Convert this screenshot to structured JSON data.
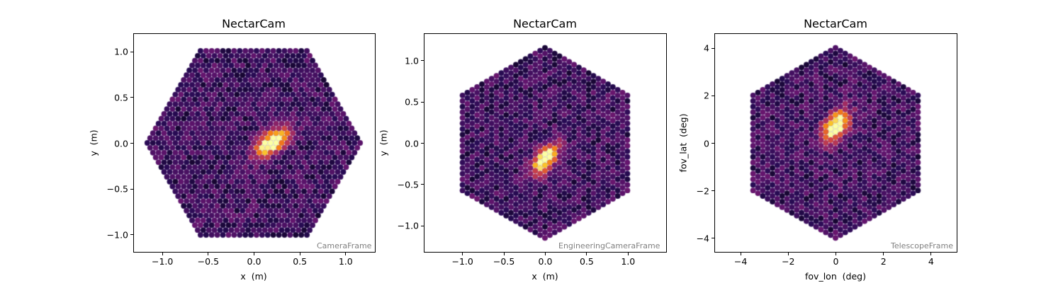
{
  "chart_data": [
    {
      "type": "heatmap",
      "title": "NectarCam",
      "frame_label": "CameraFrame",
      "xlabel": "x  (m)",
      "ylabel": "y  (m)",
      "xlim": [
        -1.32,
        1.32
      ],
      "ylim": [
        -1.19,
        1.2
      ],
      "xticks": [
        -1.0,
        -0.5,
        0.0,
        0.5,
        1.0
      ],
      "xtick_labels": [
        "−1.0",
        "−0.5",
        "0.0",
        "0.5",
        "1.0"
      ],
      "yticks": [
        -1.0,
        -0.5,
        0.0,
        0.5,
        1.0
      ],
      "ytick_labels": [
        "−1.0",
        "−0.5",
        "0.0",
        "0.5",
        "1.0"
      ],
      "colormap": "inferno",
      "camera_orientation": "pointy-sides",
      "camera_radius": 1.2,
      "image_peak": {
        "x": 0.2,
        "y": 0.0,
        "angle_deg": 35,
        "length": 0.3,
        "width": 0.08
      },
      "grid": false
    },
    {
      "type": "heatmap",
      "title": "NectarCam",
      "frame_label": "EngineeringCameraFrame",
      "xlabel": "x  (m)",
      "ylabel": "y  (m)",
      "xlim": [
        -1.46,
        1.46
      ],
      "ylim": [
        -1.32,
        1.32
      ],
      "xticks": [
        -1.0,
        -0.5,
        0.0,
        0.5,
        1.0
      ],
      "xtick_labels": [
        "−1.0",
        "−0.5",
        "0.0",
        "0.5",
        "1.0"
      ],
      "yticks": [
        -1.0,
        -0.5,
        0.0,
        0.5,
        1.0
      ],
      "ytick_labels": [
        "−1.0",
        "−0.5",
        "0.0",
        "0.5",
        "1.0"
      ],
      "colormap": "inferno",
      "camera_orientation": "pointy-top",
      "camera_radius": 1.2,
      "image_peak": {
        "x": 0.0,
        "y": -0.2,
        "angle_deg": 55,
        "length": 0.3,
        "width": 0.08
      },
      "grid": false
    },
    {
      "type": "heatmap",
      "title": "NectarCam",
      "frame_label": "TelescopeFrame",
      "xlabel": "fov_lon  (deg)",
      "ylabel": "fov_lat  (deg)",
      "xlim": [
        -5.1,
        5.1
      ],
      "ylim": [
        -4.6,
        4.6
      ],
      "xticks": [
        -4,
        -2,
        0,
        2,
        4
      ],
      "xtick_labels": [
        "−4",
        "−2",
        "0",
        "2",
        "4"
      ],
      "yticks": [
        -4,
        -2,
        0,
        2,
        4
      ],
      "ytick_labels": [
        "−4",
        "−2",
        "0",
        "2",
        "4"
      ],
      "colormap": "inferno",
      "camera_orientation": "pointy-top",
      "camera_radius": 4.1,
      "image_peak": {
        "x": 0.0,
        "y": 0.7,
        "angle_deg": 55,
        "length": 1.1,
        "width": 0.3
      },
      "grid": false
    }
  ],
  "panels": [
    {
      "title": "NectarCam",
      "frame_label": "CameraFrame",
      "xlabel": "x  (m)",
      "ylabel": "y  (m)"
    },
    {
      "title": "NectarCam",
      "frame_label": "EngineeringCameraFrame",
      "xlabel": "x  (m)",
      "ylabel": "y  (m)"
    },
    {
      "title": "NectarCam",
      "frame_label": "TelescopeFrame",
      "xlabel": "fov_lon  (deg)",
      "ylabel": "fov_lat  (deg)"
    }
  ]
}
